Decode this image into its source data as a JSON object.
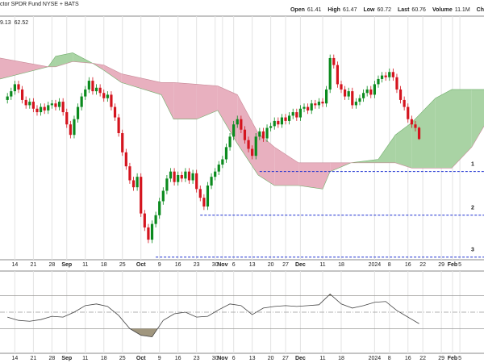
{
  "chart_data": {
    "type": "candlestick",
    "title": "ctor SPDR Fund NYSE + BATS",
    "stats": [
      {
        "label": "Open",
        "value": 61.41
      },
      {
        "label": "High",
        "value": 61.47
      },
      {
        "label": "Low",
        "value": 60.72
      },
      {
        "label": "Last",
        "value": 60.76
      },
      {
        "label": "Volume",
        "value": "11.1M"
      }
    ],
    "stats_tail": "Ch",
    "overlay_values": [
      {
        "value": 9.13,
        "color": "#2e8b2e"
      },
      {
        "value": 62.52,
        "color": "#d0101e"
      }
    ],
    "up_color": "#0b8a1e",
    "down_color": "#d4141e",
    "ohlc": [
      [
        63.0,
        63.4,
        62.8,
        63.2
      ],
      [
        63.2,
        63.7,
        63.0,
        63.5
      ],
      [
        63.5,
        64.1,
        63.3,
        63.9
      ],
      [
        63.9,
        64.1,
        63.4,
        63.6
      ],
      [
        63.6,
        63.8,
        62.8,
        63.0
      ],
      [
        63.0,
        63.2,
        62.5,
        62.7
      ],
      [
        62.7,
        63.1,
        62.5,
        62.9
      ],
      [
        62.9,
        63.1,
        62.3,
        62.5
      ],
      [
        62.5,
        62.7,
        62.1,
        62.3
      ],
      [
        62.3,
        62.8,
        62.1,
        62.6
      ],
      [
        62.6,
        62.8,
        62.2,
        62.4
      ],
      [
        62.4,
        62.9,
        62.2,
        62.7
      ],
      [
        62.7,
        63.0,
        62.5,
        62.8
      ],
      [
        62.8,
        63.0,
        62.4,
        62.6
      ],
      [
        62.6,
        63.1,
        62.4,
        62.9
      ],
      [
        62.9,
        63.1,
        62.1,
        62.3
      ],
      [
        62.3,
        62.5,
        61.4,
        61.6
      ],
      [
        61.6,
        61.8,
        60.8,
        61.0
      ],
      [
        61.0,
        62.1,
        60.8,
        61.9
      ],
      [
        61.9,
        62.8,
        61.7,
        62.6
      ],
      [
        62.6,
        63.4,
        62.4,
        63.2
      ],
      [
        63.2,
        63.8,
        63.0,
        63.6
      ],
      [
        63.6,
        64.3,
        63.4,
        64.1
      ],
      [
        64.1,
        64.3,
        63.3,
        63.5
      ],
      [
        63.5,
        63.9,
        63.3,
        63.7
      ],
      [
        63.7,
        63.9,
        63.2,
        63.4
      ],
      [
        63.4,
        63.6,
        62.9,
        63.1
      ],
      [
        63.1,
        63.5,
        62.9,
        63.3
      ],
      [
        63.3,
        63.5,
        62.4,
        62.6
      ],
      [
        62.6,
        62.8,
        61.8,
        62.0
      ],
      [
        62.0,
        62.2,
        60.9,
        61.1
      ],
      [
        61.1,
        61.3,
        59.8,
        60.0
      ],
      [
        60.0,
        60.2,
        59.0,
        59.2
      ],
      [
        59.2,
        59.4,
        58.2,
        58.4
      ],
      [
        58.4,
        58.6,
        57.8,
        58.0
      ],
      [
        58.0,
        58.8,
        57.8,
        58.6
      ],
      [
        58.6,
        58.8,
        56.3,
        56.5
      ],
      [
        56.5,
        56.7,
        55.5,
        55.7
      ],
      [
        55.7,
        55.9,
        54.8,
        55.0
      ],
      [
        55.0,
        56.1,
        54.8,
        55.9
      ],
      [
        55.9,
        56.6,
        55.7,
        56.4
      ],
      [
        56.4,
        57.4,
        56.2,
        57.2
      ],
      [
        57.2,
        58.0,
        57.0,
        57.8
      ],
      [
        57.8,
        58.7,
        57.6,
        58.5
      ],
      [
        58.5,
        59.1,
        58.3,
        58.9
      ],
      [
        58.9,
        59.1,
        58.1,
        58.3
      ],
      [
        58.3,
        58.9,
        58.1,
        58.7
      ],
      [
        58.7,
        58.9,
        58.3,
        58.5
      ],
      [
        58.5,
        59.1,
        58.3,
        58.9
      ],
      [
        58.9,
        59.1,
        58.2,
        58.4
      ],
      [
        58.4,
        59.0,
        58.2,
        58.8
      ],
      [
        58.8,
        59.0,
        57.7,
        57.9
      ],
      [
        57.9,
        58.1,
        57.2,
        57.4
      ],
      [
        57.4,
        57.6,
        56.7,
        56.9
      ],
      [
        56.9,
        58.3,
        56.7,
        58.1
      ],
      [
        58.1,
        58.8,
        57.9,
        58.6
      ],
      [
        58.6,
        59.1,
        58.4,
        58.9
      ],
      [
        58.9,
        59.5,
        58.7,
        59.3
      ],
      [
        59.3,
        59.8,
        59.1,
        59.6
      ],
      [
        59.6,
        60.5,
        59.4,
        60.3
      ],
      [
        60.3,
        61.1,
        60.1,
        60.9
      ],
      [
        60.9,
        61.8,
        60.7,
        61.6
      ],
      [
        61.6,
        62.1,
        61.4,
        61.9
      ],
      [
        61.9,
        62.1,
        61.1,
        61.3
      ],
      [
        61.3,
        61.5,
        60.5,
        60.7
      ],
      [
        60.7,
        60.9,
        60.0,
        60.2
      ],
      [
        60.2,
        60.4,
        59.6,
        59.8
      ],
      [
        59.8,
        61.1,
        59.6,
        60.9
      ],
      [
        60.9,
        61.4,
        60.7,
        61.2
      ],
      [
        61.2,
        61.4,
        60.6,
        60.8
      ],
      [
        60.8,
        61.6,
        60.6,
        61.4
      ],
      [
        61.4,
        61.7,
        61.2,
        61.5
      ],
      [
        61.5,
        62.0,
        61.3,
        61.8
      ],
      [
        61.8,
        62.0,
        61.4,
        61.6
      ],
      [
        61.6,
        62.2,
        61.4,
        62.0
      ],
      [
        62.0,
        62.2,
        61.6,
        61.8
      ],
      [
        61.8,
        62.3,
        61.6,
        62.1
      ],
      [
        62.1,
        62.5,
        61.9,
        62.3
      ],
      [
        62.3,
        62.5,
        61.8,
        62.0
      ],
      [
        62.0,
        62.7,
        61.8,
        62.5
      ],
      [
        62.5,
        62.8,
        62.3,
        62.6
      ],
      [
        62.6,
        62.8,
        62.2,
        62.4
      ],
      [
        62.4,
        63.0,
        62.2,
        62.8
      ],
      [
        62.8,
        63.0,
        62.5,
        62.7
      ],
      [
        62.7,
        63.1,
        62.5,
        62.9
      ],
      [
        62.9,
        63.1,
        62.6,
        62.8
      ],
      [
        62.8,
        63.8,
        62.6,
        63.6
      ],
      [
        63.6,
        65.6,
        63.4,
        65.4
      ],
      [
        65.4,
        65.6,
        64.8,
        65.0
      ],
      [
        65.0,
        65.2,
        63.7,
        63.9
      ],
      [
        63.9,
        64.1,
        63.4,
        63.6
      ],
      [
        63.6,
        63.8,
        63.0,
        63.2
      ],
      [
        63.2,
        63.7,
        63.0,
        63.5
      ],
      [
        63.5,
        63.7,
        62.5,
        62.7
      ],
      [
        62.7,
        63.1,
        62.5,
        62.9
      ],
      [
        62.9,
        63.3,
        62.7,
        63.1
      ],
      [
        63.1,
        63.6,
        62.9,
        63.4
      ],
      [
        63.4,
        63.8,
        63.2,
        63.6
      ],
      [
        63.6,
        63.8,
        63.1,
        63.3
      ],
      [
        63.3,
        64.1,
        63.1,
        63.9
      ],
      [
        63.9,
        64.4,
        63.7,
        64.2
      ],
      [
        64.2,
        64.6,
        64.0,
        64.4
      ],
      [
        64.4,
        64.6,
        64.1,
        64.3
      ],
      [
        64.3,
        64.8,
        64.1,
        64.6
      ],
      [
        64.6,
        64.8,
        64.1,
        64.3
      ],
      [
        64.3,
        64.5,
        63.4,
        63.6
      ],
      [
        63.6,
        63.8,
        62.8,
        63.0
      ],
      [
        63.0,
        63.2,
        62.4,
        62.6
      ],
      [
        62.6,
        62.8,
        61.7,
        61.9
      ],
      [
        61.9,
        62.1,
        61.4,
        61.6
      ],
      [
        61.6,
        61.8,
        61.2,
        61.4
      ],
      [
        61.41,
        61.47,
        60.72,
        60.76
      ]
    ],
    "cloud": {
      "x": [
        -2,
        11,
        13,
        17.6,
        23,
        26,
        30.7,
        41.5,
        44.8,
        51,
        56.7,
        62,
        67.6,
        72,
        78.5,
        85,
        87,
        92.6,
        100,
        104.6,
        109,
        115.4,
        119.8,
        125.2,
        128.5
      ],
      "span_a": [
        64.2,
        64.9,
        65.5,
        65.7,
        65.1,
        64.7,
        64.0,
        63.3,
        61.9,
        61.9,
        62.4,
        60.5,
        58.7,
        58.1,
        58.1,
        57.9,
        58.9,
        59.4,
        59.6,
        61.0,
        61.7,
        63.1,
        63.6,
        63.6,
        63.6
      ],
      "span_b": [
        65.4,
        64.9,
        64.9,
        65.2,
        65.1,
        65.0,
        64.5,
        64.0,
        64.0,
        63.9,
        63.8,
        63.3,
        61.1,
        60.3,
        59.4,
        59.4,
        59.4,
        59.4,
        59.4,
        59.4,
        59.1,
        59.1,
        59.1,
        60.3,
        61.5
      ],
      "bull_color": "#a9d3a4",
      "bear_color": "#e8b0bf"
    },
    "levels": [
      {
        "label": "1",
        "value": 58.9,
        "start": 68
      },
      {
        "label": "2",
        "value": 56.4,
        "start": 52
      },
      {
        "label": "3",
        "value": 54.0,
        "start": 40
      }
    ],
    "level_color": "#1a2fd0",
    "xlim": [
      -2,
      128.5
    ],
    "ylim": [
      53.85,
      67.8
    ],
    "grid": true,
    "xticks": [
      {
        "value": 2,
        "label": "14"
      },
      {
        "value": 7,
        "label": "21"
      },
      {
        "value": 12,
        "label": "28"
      },
      {
        "value": 16,
        "label": "Sep"
      },
      {
        "value": 21,
        "label": "11"
      },
      {
        "value": 26,
        "label": "18"
      },
      {
        "value": 31,
        "label": "25"
      },
      {
        "value": 36,
        "label": "Oct"
      },
      {
        "value": 41,
        "label": "9"
      },
      {
        "value": 46,
        "label": "16"
      },
      {
        "value": 51,
        "label": "23"
      },
      {
        "value": 56,
        "label": "30"
      },
      {
        "value": 58,
        "label": "Nov"
      },
      {
        "value": 61,
        "label": "6"
      },
      {
        "value": 66,
        "label": "13"
      },
      {
        "value": 71,
        "label": "20"
      },
      {
        "value": 75,
        "label": "27"
      },
      {
        "value": 79,
        "label": "Dec"
      },
      {
        "value": 85,
        "label": "11"
      },
      {
        "value": 90,
        "label": "18"
      },
      {
        "value": 99,
        "label": "2024"
      },
      {
        "value": 103,
        "label": "8"
      },
      {
        "value": 108,
        "label": "16"
      },
      {
        "value": 112,
        "label": "22"
      },
      {
        "value": 117,
        "label": "29"
      },
      {
        "value": 120,
        "label": "Feb"
      },
      {
        "value": 122,
        "label": "5"
      }
    ],
    "rsi": {
      "x": [
        0,
        3,
        6,
        9,
        12,
        15,
        18,
        21,
        24,
        27,
        30,
        33,
        36,
        39,
        42,
        45,
        48,
        51,
        54,
        57,
        60,
        63,
        66,
        69,
        72,
        75,
        78,
        81,
        84,
        87,
        90,
        93,
        96,
        99,
        102,
        105,
        108,
        111
      ],
      "values": [
        44,
        40,
        39,
        41,
        45,
        44,
        50,
        58,
        60,
        57,
        46,
        30,
        22,
        20,
        40,
        48,
        50,
        44,
        45,
        53,
        60,
        58,
        47,
        55,
        57,
        58,
        57,
        58,
        59,
        72,
        60,
        55,
        58,
        62,
        63,
        52,
        44,
        36
      ],
      "ylim": [
        0,
        100
      ],
      "lines": [
        70,
        50,
        30
      ],
      "fill_color": "#a0967e"
    }
  }
}
